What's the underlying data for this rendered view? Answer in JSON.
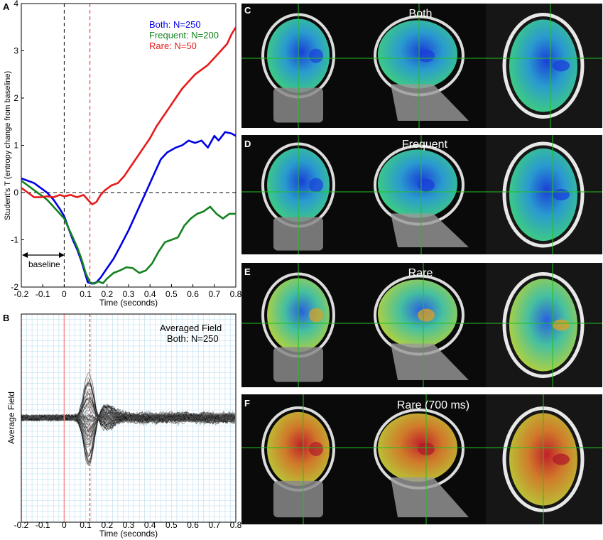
{
  "panels": {
    "A": {
      "letter": "A"
    },
    "B": {
      "letter": "B"
    },
    "C": {
      "letter": "C",
      "title": "Both"
    },
    "D": {
      "letter": "D",
      "title": "Frequent"
    },
    "E": {
      "letter": "E",
      "title": "Rare"
    },
    "F": {
      "letter": "F",
      "title": "Rare (700 ms)"
    }
  },
  "colors": {
    "both": "#0000e6",
    "frequent": "#14821e",
    "rare": "#e61a1a",
    "crosshair": "#20c020",
    "brain_bg": "#0a0a0a"
  },
  "chart_data": [
    {
      "panel": "A",
      "type": "line",
      "xlabel": "Time (seconds)",
      "ylabel": "Student's T (entropy change from baseline)",
      "xlim": [
        -0.2,
        0.8
      ],
      "ylim": [
        -2,
        4
      ],
      "xticks": [
        "-0.2",
        "-0.1",
        "0",
        "0.1",
        "0.2",
        "0.3",
        "0.4",
        "0.5",
        "0.6",
        "0.7",
        "0.8"
      ],
      "yticks": [
        "-2",
        "-1",
        "0",
        "1",
        "2",
        "3",
        "4"
      ],
      "vlines": [
        0.0,
        0.12
      ],
      "hline": 0,
      "annotation": "baseline",
      "baseline_range": [
        -0.2,
        0.0
      ],
      "legend_position": "top-right",
      "series": [
        {
          "name": "Both: N=250",
          "key": "both",
          "points": [
            [
              -0.2,
              0.3
            ],
            [
              -0.17,
              0.25
            ],
            [
              -0.14,
              0.2
            ],
            [
              -0.11,
              0.1
            ],
            [
              -0.08,
              0.0
            ],
            [
              -0.05,
              -0.15
            ],
            [
              -0.02,
              -0.35
            ],
            [
              0.0,
              -0.5
            ],
            [
              0.02,
              -0.75
            ],
            [
              0.04,
              -1.0
            ],
            [
              0.06,
              -1.2
            ],
            [
              0.08,
              -1.45
            ],
            [
              0.1,
              -1.75
            ],
            [
              0.11,
              -1.9
            ],
            [
              0.13,
              -1.93
            ],
            [
              0.15,
              -1.9
            ],
            [
              0.17,
              -1.8
            ],
            [
              0.2,
              -1.6
            ],
            [
              0.23,
              -1.4
            ],
            [
              0.26,
              -1.15
            ],
            [
              0.3,
              -0.8
            ],
            [
              0.34,
              -0.4
            ],
            [
              0.38,
              0.0
            ],
            [
              0.42,
              0.4
            ],
            [
              0.45,
              0.7
            ],
            [
              0.48,
              0.85
            ],
            [
              0.52,
              0.95
            ],
            [
              0.55,
              1.0
            ],
            [
              0.58,
              1.1
            ],
            [
              0.61,
              1.05
            ],
            [
              0.64,
              1.1
            ],
            [
              0.67,
              0.95
            ],
            [
              0.7,
              1.2
            ],
            [
              0.72,
              1.1
            ],
            [
              0.75,
              1.28
            ],
            [
              0.78,
              1.25
            ],
            [
              0.8,
              1.2
            ]
          ]
        },
        {
          "name": "Frequent: N=200",
          "key": "frequent",
          "points": [
            [
              -0.2,
              0.25
            ],
            [
              -0.17,
              0.15
            ],
            [
              -0.14,
              0.05
            ],
            [
              -0.11,
              -0.05
            ],
            [
              -0.08,
              -0.15
            ],
            [
              -0.05,
              -0.3
            ],
            [
              -0.02,
              -0.45
            ],
            [
              0.0,
              -0.55
            ],
            [
              0.02,
              -0.75
            ],
            [
              0.04,
              -0.95
            ],
            [
              0.06,
              -1.15
            ],
            [
              0.08,
              -1.4
            ],
            [
              0.1,
              -1.7
            ],
            [
              0.12,
              -1.9
            ],
            [
              0.14,
              -1.93
            ],
            [
              0.16,
              -1.88
            ],
            [
              0.18,
              -1.92
            ],
            [
              0.2,
              -1.82
            ],
            [
              0.23,
              -1.7
            ],
            [
              0.26,
              -1.65
            ],
            [
              0.29,
              -1.58
            ],
            [
              0.32,
              -1.6
            ],
            [
              0.35,
              -1.7
            ],
            [
              0.38,
              -1.65
            ],
            [
              0.41,
              -1.5
            ],
            [
              0.44,
              -1.25
            ],
            [
              0.47,
              -1.05
            ],
            [
              0.5,
              -1.0
            ],
            [
              0.53,
              -0.95
            ],
            [
              0.56,
              -0.7
            ],
            [
              0.59,
              -0.55
            ],
            [
              0.62,
              -0.45
            ],
            [
              0.65,
              -0.4
            ],
            [
              0.68,
              -0.3
            ],
            [
              0.71,
              -0.45
            ],
            [
              0.74,
              -0.55
            ],
            [
              0.77,
              -0.45
            ],
            [
              0.8,
              -0.45
            ]
          ]
        },
        {
          "name": "Rare: N=50",
          "key": "rare",
          "points": [
            [
              -0.2,
              0.1
            ],
            [
              -0.17,
              0.0
            ],
            [
              -0.14,
              -0.1
            ],
            [
              -0.11,
              -0.1
            ],
            [
              -0.08,
              -0.08
            ],
            [
              -0.05,
              -0.1
            ],
            [
              -0.02,
              -0.05
            ],
            [
              0.0,
              -0.08
            ],
            [
              0.03,
              -0.05
            ],
            [
              0.06,
              -0.1
            ],
            [
              0.09,
              -0.05
            ],
            [
              0.11,
              -0.15
            ],
            [
              0.13,
              -0.25
            ],
            [
              0.15,
              -0.2
            ],
            [
              0.17,
              -0.05
            ],
            [
              0.19,
              0.05
            ],
            [
              0.22,
              0.15
            ],
            [
              0.25,
              0.2
            ],
            [
              0.28,
              0.35
            ],
            [
              0.31,
              0.55
            ],
            [
              0.34,
              0.75
            ],
            [
              0.37,
              0.95
            ],
            [
              0.4,
              1.15
            ],
            [
              0.43,
              1.4
            ],
            [
              0.46,
              1.6
            ],
            [
              0.49,
              1.8
            ],
            [
              0.52,
              2.0
            ],
            [
              0.55,
              2.2
            ],
            [
              0.58,
              2.35
            ],
            [
              0.61,
              2.5
            ],
            [
              0.64,
              2.6
            ],
            [
              0.67,
              2.7
            ],
            [
              0.7,
              2.85
            ],
            [
              0.73,
              3.0
            ],
            [
              0.76,
              3.15
            ],
            [
              0.78,
              3.35
            ],
            [
              0.8,
              3.5
            ]
          ]
        }
      ]
    },
    {
      "panel": "B",
      "type": "line",
      "title": "Averaged Field",
      "subtitle": "Both: N=250",
      "xlabel": "Time (seconds)",
      "ylabel": "Average Field",
      "xlim": [
        -0.2,
        0.8
      ],
      "xticks": [
        "-0.2",
        "-0.1",
        "0",
        "0.1",
        "0.2",
        "0.3",
        "0.4",
        "0.5",
        "0.6",
        "0.7",
        "0.8"
      ],
      "vlines": [
        0.0,
        0.12
      ],
      "grid": true,
      "trace_count": 60
    }
  ]
}
